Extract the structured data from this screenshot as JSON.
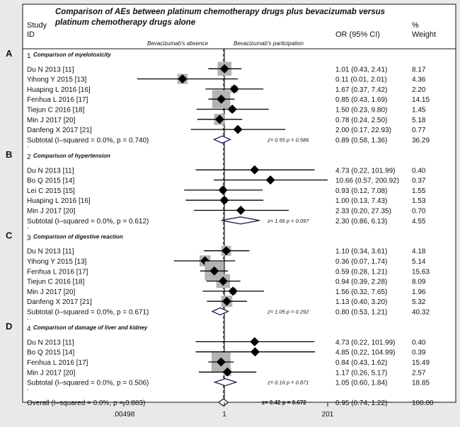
{
  "chart_data": {
    "type": "forest",
    "title_lines": [
      "Comparison of AEs between platinum chemotherapy drugs plus bevacizumab versus",
      "platinum chemotherapy drugs alone"
    ],
    "col_study": [
      "Study",
      "ID"
    ],
    "col_or": "OR (95% CI)",
    "col_weight": [
      "%",
      "Weight"
    ],
    "favours_left": "Bevacizumab's absence",
    "favours_right": "Bevacizumab's participation",
    "x_scale": "log",
    "x_ticks": [
      {
        "value": 0.00498,
        "label": ".00498"
      },
      {
        "value": 1,
        "label": "1"
      },
      {
        "value": 201,
        "label": "201"
      }
    ],
    "overall_line_value": 0.95,
    "groups": [
      {
        "letter": "A",
        "num": "1",
        "title": "Comparison of myelotoxicity",
        "studies": [
          {
            "label": "Du N 2013 [11]",
            "or": 1.01,
            "lo": 0.43,
            "hi": 2.41,
            "ci": "1.01 (0.43, 2.41)",
            "weight": "8.17",
            "w": 8.17
          },
          {
            "label": "Yihong Y 2015 [13]",
            "or": 0.11,
            "lo": 0.01,
            "hi": 2.01,
            "ci": "0.11 (0.01, 2.01)",
            "weight": "4.36",
            "w": 4.36
          },
          {
            "label": "Huaping L 2016 [16]",
            "or": 1.67,
            "lo": 0.37,
            "hi": 7.42,
            "ci": "1.67 (0.37, 7.42)",
            "weight": "2.20",
            "w": 2.2
          },
          {
            "label": "Fenhua L 2016 [17]",
            "or": 0.85,
            "lo": 0.43,
            "hi": 1.69,
            "ci": "0.85 (0.43, 1.69)",
            "weight": "14.15",
            "w": 14.15
          },
          {
            "label": "Tiejun C 2016 [18]",
            "or": 1.5,
            "lo": 0.23,
            "hi": 9.8,
            "ci": "1.50 (0.23, 9.80)",
            "weight": "1.45",
            "w": 1.45
          },
          {
            "label": "Min J 2017 [20]",
            "or": 0.78,
            "lo": 0.24,
            "hi": 2.5,
            "ci": "0.78 (0.24, 2.50)",
            "weight": "5.18",
            "w": 5.18
          },
          {
            "label": "Danfeng X 2017 [21]",
            "or": 2.0,
            "lo": 0.17,
            "hi": 22.93,
            "ci": "2.00 (0.17, 22.93)",
            "weight": "0.77",
            "w": 0.77
          }
        ],
        "subtotal": {
          "label": "Subtotal  (I–squared = 0.0%, p = 0.740)",
          "or": 0.89,
          "lo": 0.58,
          "hi": 1.36,
          "ci": "0.89 (0.58, 1.36)",
          "weight": "36.29",
          "z": "z=  0.55   p = 0.586"
        }
      },
      {
        "letter": "B",
        "num": "2",
        "title": "Comparison of hypertension",
        "studies": [
          {
            "label": "Du N 2013 [11]",
            "or": 4.73,
            "lo": 0.22,
            "hi": 101.99,
            "ci": "4.73 (0.22, 101.99)",
            "weight": "0.40",
            "w": 0.4
          },
          {
            "label": "Bo Q 2015 [14]",
            "or": 10.66,
            "lo": 0.57,
            "hi": 200.92,
            "ci": "10.66 (0.57, 200.92)",
            "weight": "0.37",
            "w": 0.37
          },
          {
            "label": "Lei C 2015 [15]",
            "or": 0.93,
            "lo": 0.12,
            "hi": 7.08,
            "ci": "0.93 (0.12, 7.08)",
            "weight": "1.55",
            "w": 1.55
          },
          {
            "label": "Huaping L 2016 [16]",
            "or": 1.0,
            "lo": 0.13,
            "hi": 7.43,
            "ci": "1.00 (0.13, 7.43)",
            "weight": "1.53",
            "w": 1.53
          },
          {
            "label": "Min J 2017 [20]",
            "or": 2.33,
            "lo": 0.2,
            "hi": 27.35,
            "ci": "2.33 (0.20, 27.35)",
            "weight": "0.70",
            "w": 0.7
          }
        ],
        "subtotal": {
          "label": "Subtotal  (I–squared = 0.0%, p = 0.612)",
          "or": 2.3,
          "lo": 0.86,
          "hi": 6.13,
          "ci": "2.30 (0.86, 6.13)",
          "weight": "4.55",
          "z": "z=  1.66   p = 0.097"
        }
      },
      {
        "letter": "C",
        "num": "3",
        "title": "Comparison of digestive reaction",
        "studies": [
          {
            "label": "Du N 2013 [11]",
            "or": 1.1,
            "lo": 0.34,
            "hi": 3.61,
            "ci": "1.10 (0.34, 3.61)",
            "weight": "4.18",
            "w": 4.18
          },
          {
            "label": "Yihong Y 2015 [13]",
            "or": 0.36,
            "lo": 0.07,
            "hi": 1.74,
            "ci": "0.36 (0.07, 1.74)",
            "weight": "5.14",
            "w": 5.14
          },
          {
            "label": "Fenhua L 2016 [17]",
            "or": 0.59,
            "lo": 0.28,
            "hi": 1.21,
            "ci": "0.59 (0.28, 1.21)",
            "weight": "15.63",
            "w": 15.63
          },
          {
            "label": "Tiejun C 2016 [18]",
            "or": 0.94,
            "lo": 0.39,
            "hi": 2.28,
            "ci": "0.94 (0.39, 2.28)",
            "weight": "8.09",
            "w": 8.09
          },
          {
            "label": "Min J 2017 [20]",
            "or": 1.56,
            "lo": 0.32,
            "hi": 7.65,
            "ci": "1.56 (0.32, 7.65)",
            "weight": "1.96",
            "w": 1.96
          },
          {
            "label": "Danfeng X 2017 [21]",
            "or": 1.13,
            "lo": 0.4,
            "hi": 3.2,
            "ci": "1.13 (0.40, 3.20)",
            "weight": "5.32",
            "w": 5.32
          }
        ],
        "subtotal": {
          "label": "Subtotal  (I–squared = 0.0%, p = 0.671)",
          "or": 0.8,
          "lo": 0.53,
          "hi": 1.21,
          "ci": "0.80 (0.53, 1.21)",
          "weight": "40.32",
          "z": "z=  1.05   p = 0.292"
        }
      },
      {
        "letter": "D",
        "num": "4",
        "title": "Comparison of damage of liver and kidney",
        "studies": [
          {
            "label": "Du N 2013 [11]",
            "or": 4.73,
            "lo": 0.22,
            "hi": 101.99,
            "ci": "4.73 (0.22, 101.99)",
            "weight": "0.40",
            "w": 0.4
          },
          {
            "label": "Bo Q 2015 [14]",
            "or": 4.85,
            "lo": 0.22,
            "hi": 104.99,
            "ci": "4.85 (0.22, 104.99)",
            "weight": "0.39",
            "w": 0.39
          },
          {
            "label": "Fenhua L 2016 [17]",
            "or": 0.84,
            "lo": 0.43,
            "hi": 1.62,
            "ci": "0.84 (0.43, 1.62)",
            "weight": "15.49",
            "w": 15.49
          },
          {
            "label": "Min J 2017 [20]",
            "or": 1.17,
            "lo": 0.26,
            "hi": 5.17,
            "ci": "1.17 (0.26, 5.17)",
            "weight": "2.57",
            "w": 2.57
          }
        ],
        "subtotal": {
          "label": "Subtotal  (I–squared = 0.0%, p = 0.506)",
          "or": 1.05,
          "lo": 0.6,
          "hi": 1.84,
          "ci": "1.05 (0.60, 1.84)",
          "weight": "18.85",
          "z": "z=  0.16   p = 0.871"
        }
      }
    ],
    "overall": {
      "label": "Overall  (I–squared = 0.0%, p = 0.883)",
      "or": 0.95,
      "lo": 0.74,
      "hi": 1.22,
      "ci": "0.95 (0.74, 1.22)",
      "weight": "100.00",
      "z": "z=  0.42   p = 0.672"
    }
  }
}
